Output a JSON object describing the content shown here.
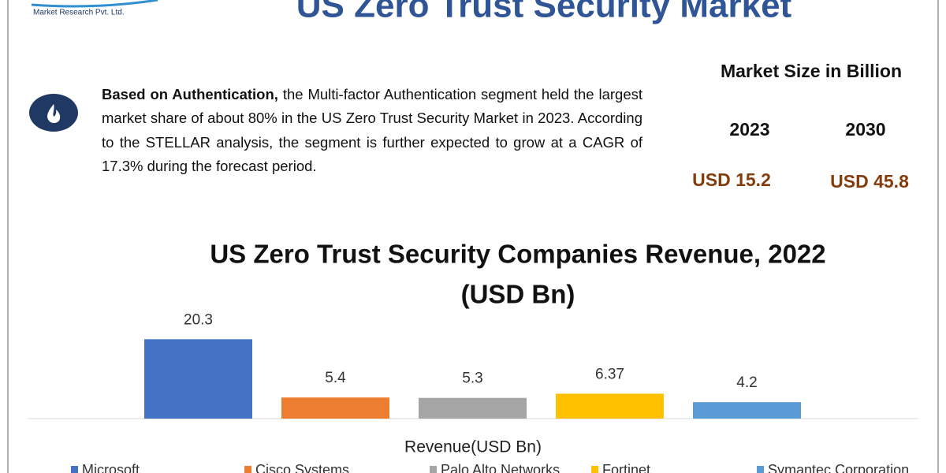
{
  "header": {
    "logo_text": "Market Research Pvt. Ltd.",
    "title": "US Zero Trust Security Market"
  },
  "summary": {
    "lead": "Based on Authentication,",
    "text": " the Multi-factor Authentication segment held the largest market share of about 80% in the US Zero Trust Security Market in 2023. According to the STELLAR analysis, the segment is further expected to grow at a CAGR of 17.3% during the forecast period."
  },
  "market_size": {
    "title": "Market Size in Billion",
    "years": [
      "2023",
      "2030"
    ],
    "values": [
      "USD 15.2",
      "USD 45.8"
    ]
  },
  "chart_data": {
    "type": "bar",
    "title": [
      "US Zero Trust Security Companies Revenue, 2022",
      "(USD Bn)"
    ],
    "x_label": "Revenue(USD Bn)",
    "ylim": [
      0,
      25
    ],
    "legend": "bottom",
    "series": [
      {
        "name": "Microsoft",
        "color": "#4472c4",
        "values": [
          20.3
        ]
      },
      {
        "name": "Cisco Systems",
        "color": "#ed7d31",
        "values": [
          5.4
        ]
      },
      {
        "name": "Palo Alto Networks",
        "color": "#a5a5a5",
        "values": [
          5.3
        ]
      },
      {
        "name": "Fortinet",
        "color": "#ffc000",
        "values": [
          6.37
        ]
      },
      {
        "name": "Symantec Corporation",
        "color": "#5b9bd5",
        "values": [
          4.2
        ]
      }
    ]
  }
}
